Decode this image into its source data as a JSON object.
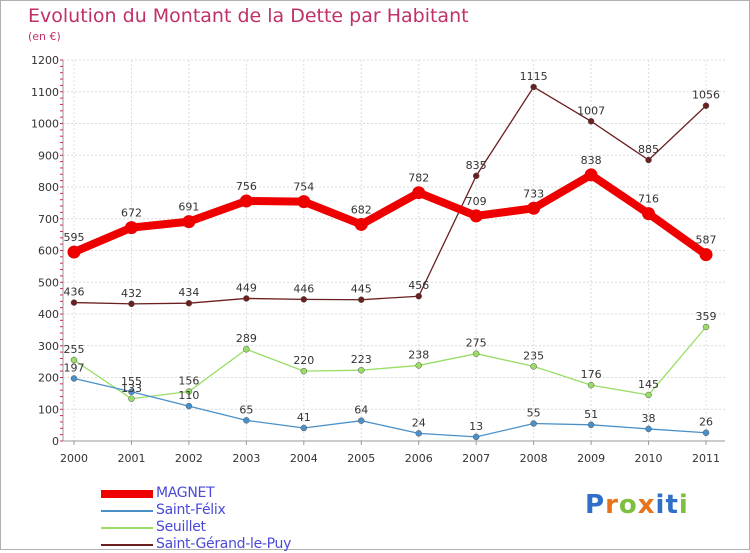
{
  "title": "Evolution du Montant de la Dette par Habitant",
  "subtitle": "(en €)",
  "logo": {
    "text": "Proxiti",
    "colors": [
      "#2f6fc9",
      "#e8731a",
      "#7fbf3f",
      "#e8731a",
      "#2f6fc9",
      "#2f6fc9",
      "#7fbf3f"
    ]
  },
  "chart_data": {
    "type": "line",
    "title": "Evolution du Montant de la Dette par Habitant",
    "subtitle": "(en €)",
    "xlabel": "",
    "ylabel": "",
    "ylim": [
      0,
      1200
    ],
    "yticks": [
      0,
      100,
      200,
      300,
      400,
      500,
      600,
      700,
      800,
      900,
      1000,
      1100,
      1200
    ],
    "grid": true,
    "legend_position": "bottom-left",
    "x": [
      "2000",
      "2001",
      "2002",
      "2003",
      "2004",
      "2005",
      "2006",
      "2007",
      "2008",
      "2009",
      "2010",
      "2011"
    ],
    "series": [
      {
        "name": "MAGNET",
        "color": "#ee0000",
        "values": [
          595,
          672,
          691,
          756,
          754,
          682,
          782,
          709,
          733,
          838,
          716,
          587
        ]
      },
      {
        "name": "Saint-Félix",
        "color": "#4a90c8",
        "values": [
          197,
          155,
          110,
          65,
          41,
          64,
          24,
          13,
          55,
          51,
          38,
          26
        ]
      },
      {
        "name": "Seuillet",
        "color": "#99dd66",
        "values": [
          255,
          133,
          156,
          289,
          220,
          223,
          238,
          275,
          235,
          176,
          145,
          359
        ]
      },
      {
        "name": "Saint-Gérand-le-Puy",
        "color": "#6b1f1f",
        "values": [
          436,
          432,
          434,
          449,
          446,
          445,
          456,
          835,
          1115,
          1007,
          885,
          1056
        ]
      }
    ]
  }
}
